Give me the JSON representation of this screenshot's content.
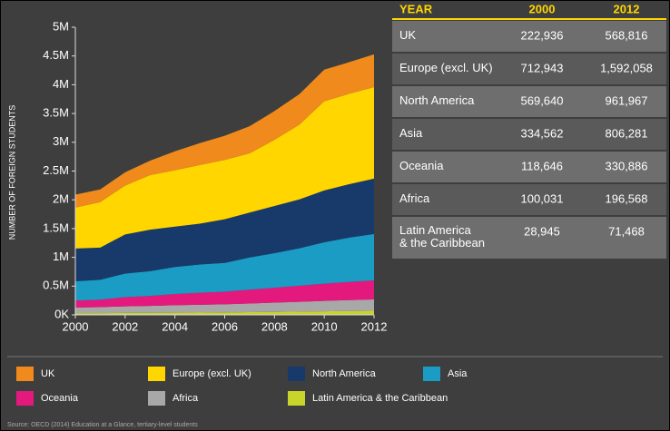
{
  "chart_data": {
    "type": "stacked-area",
    "ylabel": "NUMBER OF FOREIGN STUDENTS",
    "x": [
      2000,
      2001,
      2002,
      2003,
      2004,
      2005,
      2006,
      2007,
      2008,
      2009,
      2010,
      2011,
      2012
    ],
    "xlim": [
      2000,
      2012
    ],
    "xticks": [
      2000,
      2002,
      2004,
      2006,
      2008,
      2010,
      2012
    ],
    "ylim": [
      0,
      5000000
    ],
    "yticks": [
      {
        "value": 0,
        "label": "0K"
      },
      {
        "value": 500000,
        "label": "0.5M"
      },
      {
        "value": 1000000,
        "label": "1M"
      },
      {
        "value": 1500000,
        "label": "1.5M"
      },
      {
        "value": 2000000,
        "label": "2M"
      },
      {
        "value": 2500000,
        "label": "2.5M"
      },
      {
        "value": 3000000,
        "label": "3M"
      },
      {
        "value": 3500000,
        "label": "3.5M"
      },
      {
        "value": 4000000,
        "label": "4M"
      },
      {
        "value": 4500000,
        "label": "4.5M"
      },
      {
        "value": 5000000,
        "label": "5M"
      }
    ],
    "series": [
      {
        "name": "UK",
        "color": "#f08a1d",
        "values": [
          223000,
          220000,
          230000,
          250000,
          330000,
          380000,
          420000,
          470000,
          500000,
          530000,
          550000,
          550000,
          569000
        ]
      },
      {
        "name": "Europe (excl. UK)",
        "color": "#ffd600",
        "values": [
          713000,
          790000,
          850000,
          950000,
          980000,
          1020000,
          1030000,
          1030000,
          1150000,
          1300000,
          1550000,
          1570000,
          1592000
        ]
      },
      {
        "name": "North America",
        "color": "#173a6b",
        "values": [
          570000,
          560000,
          680000,
          720000,
          700000,
          710000,
          760000,
          780000,
          820000,
          850000,
          900000,
          930000,
          962000
        ]
      },
      {
        "name": "Asia",
        "color": "#1a9cc4",
        "values": [
          335000,
          345000,
          410000,
          430000,
          470000,
          490000,
          500000,
          560000,
          600000,
          650000,
          720000,
          770000,
          806000
        ]
      },
      {
        "name": "Oceania",
        "color": "#e4197d",
        "values": [
          119000,
          130000,
          160000,
          175000,
          195000,
          210000,
          220000,
          240000,
          260000,
          280000,
          300000,
          315000,
          331000
        ]
      },
      {
        "name": "Africa",
        "color": "#a8a8a8",
        "values": [
          100000,
          105000,
          115000,
          120000,
          130000,
          135000,
          140000,
          150000,
          160000,
          170000,
          180000,
          190000,
          197000
        ]
      },
      {
        "name": "Latin America & the Caribbean",
        "color": "#c9d42b",
        "values": [
          29000,
          30000,
          33000,
          35000,
          38000,
          40000,
          43000,
          48000,
          52000,
          57000,
          62000,
          67000,
          71000
        ]
      }
    ]
  },
  "table": {
    "header": [
      "YEAR",
      "2000",
      "2012"
    ],
    "rows": [
      [
        "UK",
        "222,936",
        "568,816"
      ],
      [
        "Europe (excl. UK)",
        "712,943",
        "1,592,058"
      ],
      [
        "North America",
        "569,640",
        "961,967"
      ],
      [
        "Asia",
        "334,562",
        "806,281"
      ],
      [
        "Oceania",
        "118,646",
        "330,886"
      ],
      [
        "Africa",
        "100,031",
        "196,568"
      ],
      [
        "Latin America|& the Caribbean",
        "28,945",
        "71,468"
      ]
    ]
  },
  "source": "Source: OECD (2014) Education at a Glance, tertiary-level students"
}
